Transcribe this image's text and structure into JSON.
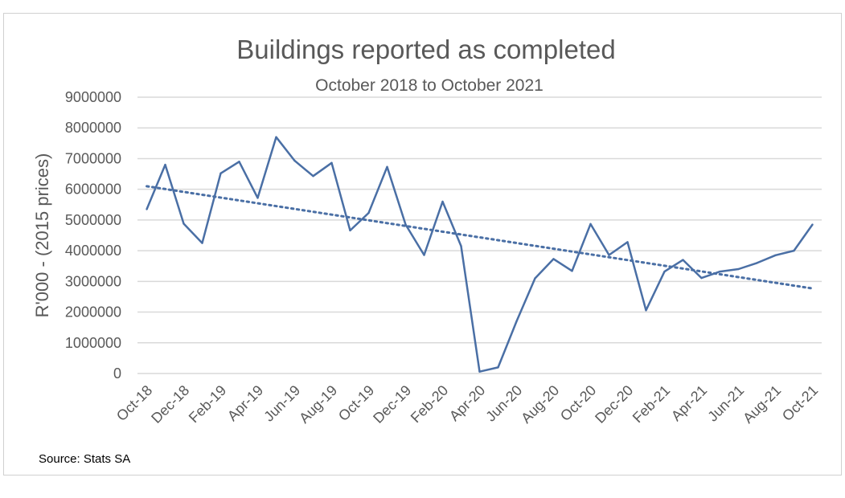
{
  "chart_data": {
    "type": "line",
    "title": "Buildings reported as completed",
    "subtitle": "October 2018 to October 2021",
    "ylabel": "R'000 - (2015 prices)",
    "xlabel": "",
    "source": "Source: Stats SA",
    "ylim": [
      0,
      9000000
    ],
    "y_ticks": [
      "0",
      "1000000",
      "2000000",
      "3000000",
      "4000000",
      "5000000",
      "6000000",
      "7000000",
      "8000000",
      "9000000"
    ],
    "grid": true,
    "legend": "none",
    "x_tick_labels": [
      "Oct-18",
      "Dec-18",
      "Feb-19",
      "Apr-19",
      "Jun-19",
      "Aug-19",
      "Oct-19",
      "Dec-19",
      "Feb-20",
      "Apr-20",
      "Jun-20",
      "Aug-20",
      "Oct-20",
      "Dec-20",
      "Feb-21",
      "Apr-21",
      "Jun-21",
      "Aug-21",
      "Oct-21"
    ],
    "x": [
      "Oct-18",
      "Nov-18",
      "Dec-18",
      "Jan-19",
      "Feb-19",
      "Mar-19",
      "Apr-19",
      "May-19",
      "Jun-19",
      "Jul-19",
      "Aug-19",
      "Sep-19",
      "Oct-19",
      "Nov-19",
      "Dec-19",
      "Jan-20",
      "Feb-20",
      "Mar-20",
      "Apr-20",
      "May-20",
      "Jun-20",
      "Jul-20",
      "Aug-20",
      "Sep-20",
      "Oct-20",
      "Nov-20",
      "Dec-20",
      "Jan-21",
      "Feb-21",
      "Mar-21",
      "Apr-21",
      "May-21",
      "Jun-21",
      "Jul-21",
      "Aug-21",
      "Sep-21",
      "Oct-21"
    ],
    "series": [
      {
        "name": "",
        "color": "#4a6fa5",
        "values": [
          5350000,
          6800000,
          4880000,
          4250000,
          6520000,
          6900000,
          5720000,
          7700000,
          6930000,
          6430000,
          6860000,
          4660000,
          5230000,
          6730000,
          4850000,
          3860000,
          5600000,
          4150000,
          60000,
          200000,
          1700000,
          3100000,
          3730000,
          3340000,
          4870000,
          3860000,
          4280000,
          2060000,
          3320000,
          3700000,
          3110000,
          3320000,
          3400000,
          3600000,
          3850000,
          4000000,
          4850000
        ]
      }
    ],
    "trendline": {
      "type": "linear",
      "style": "dotted",
      "color": "#4a6fa5",
      "start": 6100000,
      "end": 2770000
    },
    "colors": {
      "gridline": "#d9d9d9",
      "text": "#595959"
    }
  }
}
